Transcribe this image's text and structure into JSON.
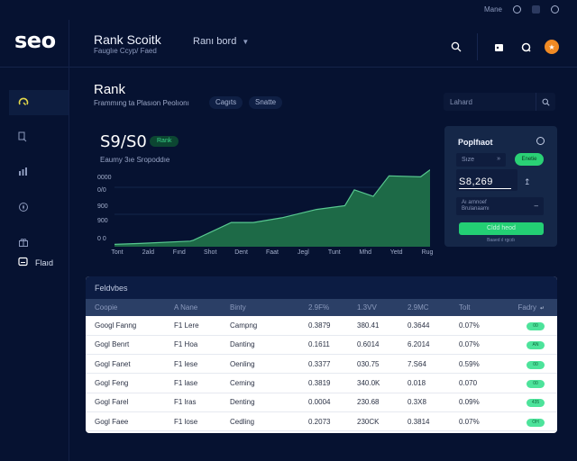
{
  "header": {
    "logo": "seo",
    "app_title": "Rank Scoitk",
    "app_subtitle": "Fauglıe Ccyp/ Faed",
    "dashboard_select": "Ranı bord",
    "system_label": "Mane",
    "icons": [
      "search-icon",
      "folder-icon",
      "chat-icon",
      "avatar"
    ]
  },
  "sidebar": {
    "items": [
      {
        "icon": "gauge-icon",
        "active": true
      },
      {
        "icon": "search-doc-icon"
      },
      {
        "icon": "bar-chart-icon"
      },
      {
        "icon": "compass-icon"
      },
      {
        "icon": "gift-icon"
      }
    ],
    "bottom_item": {
      "icon": "report-icon",
      "label": "Flaıd"
    }
  },
  "page": {
    "title": "Rank",
    "subtitle": "Frammıng ta Plasıon Peolıonı",
    "chips": [
      "Cagıts",
      "Snatte"
    ],
    "search_placeholder": "Lahard"
  },
  "metric": {
    "value": "S9/S0",
    "badge": "Rank",
    "caption": "Eaumy 3ıe Sropoddıe"
  },
  "chart_data": {
    "type": "area",
    "title": "",
    "categories": [
      "Tont",
      "2ald",
      "Fınd",
      "Shot",
      "Dent",
      "Faat",
      "Jegl",
      "Tunt",
      "Mhd",
      "Yetd",
      "Rug"
    ],
    "y_tick_labels": [
      "0 0",
      "900",
      "900",
      "0/0",
      "0000"
    ],
    "x": [
      0,
      0.08,
      0.24,
      0.25,
      0.37,
      0.44,
      0.53,
      0.64,
      0.73,
      0.76,
      0.82,
      0.87,
      0.97,
      1.0
    ],
    "values": [
      5,
      7,
      12,
      14,
      52,
      52,
      62,
      80,
      88,
      122,
      108,
      152,
      150,
      165
    ],
    "ylim": [
      0,
      170
    ],
    "grid": true,
    "color": "#1d6a47",
    "line_color": "#58c890"
  },
  "panel": {
    "title": "Poplfıaot",
    "select": "Sıze",
    "toggle_label": "Enetie",
    "amount": "S8,269",
    "dropdown_line1": "Aı arnnoef",
    "dropdown_line2": "Brulanaamı",
    "button": "Cldd heod",
    "note": "Baaed ıl rgcdı"
  },
  "table": {
    "title": "Feldvbes",
    "columns": [
      "Coopie",
      "A Nane",
      "Binty",
      "2.9F%",
      "1.3VV",
      "2.9MC",
      "Tolt",
      "Fadry"
    ],
    "rows": [
      [
        "Googl Fanng",
        "F1 Lere",
        "Campng",
        "0.3879",
        "380.41",
        "0.3644",
        "0.07%",
        "00"
      ],
      [
        "Gogl Benrt",
        "F1 Hoa",
        "Danting",
        "0.1611",
        "0.6014",
        "6.2014",
        "0.07%",
        "AN"
      ],
      [
        "Gogl Fanet",
        "F1 lese",
        "Oenling",
        "0.3377",
        "030.75",
        "7.S64",
        "0.59%",
        "00"
      ],
      [
        "Gogl Feng",
        "F1 lase",
        "Ceming",
        "0.3819",
        "340.0K",
        "0.018",
        "0.070",
        "00"
      ],
      [
        "Gogl Farel",
        "F1 lras",
        "Denting",
        "0.0004",
        "230.68",
        "0.3X8",
        "0.09%",
        "435"
      ],
      [
        "Gogl Faee",
        "F1 lose",
        "Cedling",
        "0.2073",
        "230CK",
        "0.3814",
        "0.07%",
        "OH"
      ]
    ]
  }
}
